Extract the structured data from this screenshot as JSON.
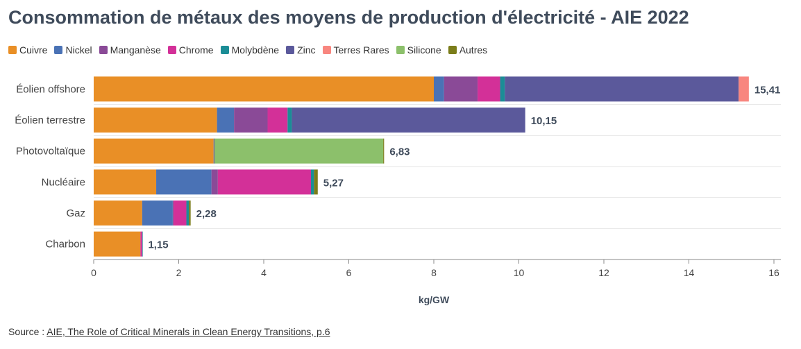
{
  "title": "Consommation de métaux des moyens de production d'électricité - AIE 2022",
  "source": {
    "prefix": "Source : ",
    "link_text": "AIE, The Role of Critical Minerals in Clean Energy Transitions, p.6"
  },
  "colors": {
    "Cuivre": "#e98f26",
    "Nickel": "#4a72b5",
    "Manganèse": "#8a4a97",
    "Chrome": "#d33098",
    "Molybdène": "#1b8d96",
    "Zinc": "#5b599b",
    "Terres Rares": "#f8867f",
    "Silicone": "#8cc06b",
    "Autres": "#7b7d1a"
  },
  "chart_data": {
    "type": "bar",
    "orientation": "horizontal",
    "stacked": true,
    "title": "Consommation de métaux des moyens de production d'électricité - AIE 2022",
    "xlabel": "kg/GW",
    "xlim": [
      0,
      16
    ],
    "xticks": [
      0,
      2,
      4,
      6,
      8,
      10,
      12,
      14,
      16
    ],
    "categories": [
      "Éolien offshore",
      "Éolien terrestre",
      "Photovoltaïque",
      "Nucléaire",
      "Gaz",
      "Charbon"
    ],
    "totals": [
      15.41,
      10.15,
      6.83,
      5.27,
      2.28,
      1.15
    ],
    "total_labels": [
      "15,41",
      "10,15",
      "6,83",
      "5,27",
      "2,28",
      "1,15"
    ],
    "legend_position": "top",
    "grid": true,
    "series": [
      {
        "name": "Cuivre",
        "values": [
          8.0,
          2.9,
          2.82,
          1.47,
          1.14,
          1.1
        ]
      },
      {
        "name": "Nickel",
        "values": [
          0.24,
          0.4,
          0.01,
          1.3,
          0.72,
          0.0
        ]
      },
      {
        "name": "Manganèse",
        "values": [
          0.79,
          0.79,
          0.01,
          0.15,
          0.02,
          0.0
        ]
      },
      {
        "name": "Chrome",
        "values": [
          0.53,
          0.47,
          0.0,
          2.19,
          0.3,
          0.04
        ]
      },
      {
        "name": "Molybdène",
        "values": [
          0.11,
          0.1,
          0.0,
          0.07,
          0.06,
          0.01
        ]
      },
      {
        "name": "Zinc",
        "values": [
          5.5,
          5.49,
          0.0,
          0.0,
          0.0,
          0.0
        ]
      },
      {
        "name": "Terres Rares",
        "values": [
          0.24,
          0.0,
          0.0,
          0.0,
          0.0,
          0.0
        ]
      },
      {
        "name": "Silicone",
        "values": [
          0.0,
          0.0,
          3.97,
          0.0,
          0.0,
          0.0
        ]
      },
      {
        "name": "Autres",
        "values": [
          0.0,
          0.0,
          0.02,
          0.09,
          0.04,
          0.0
        ]
      }
    ]
  }
}
